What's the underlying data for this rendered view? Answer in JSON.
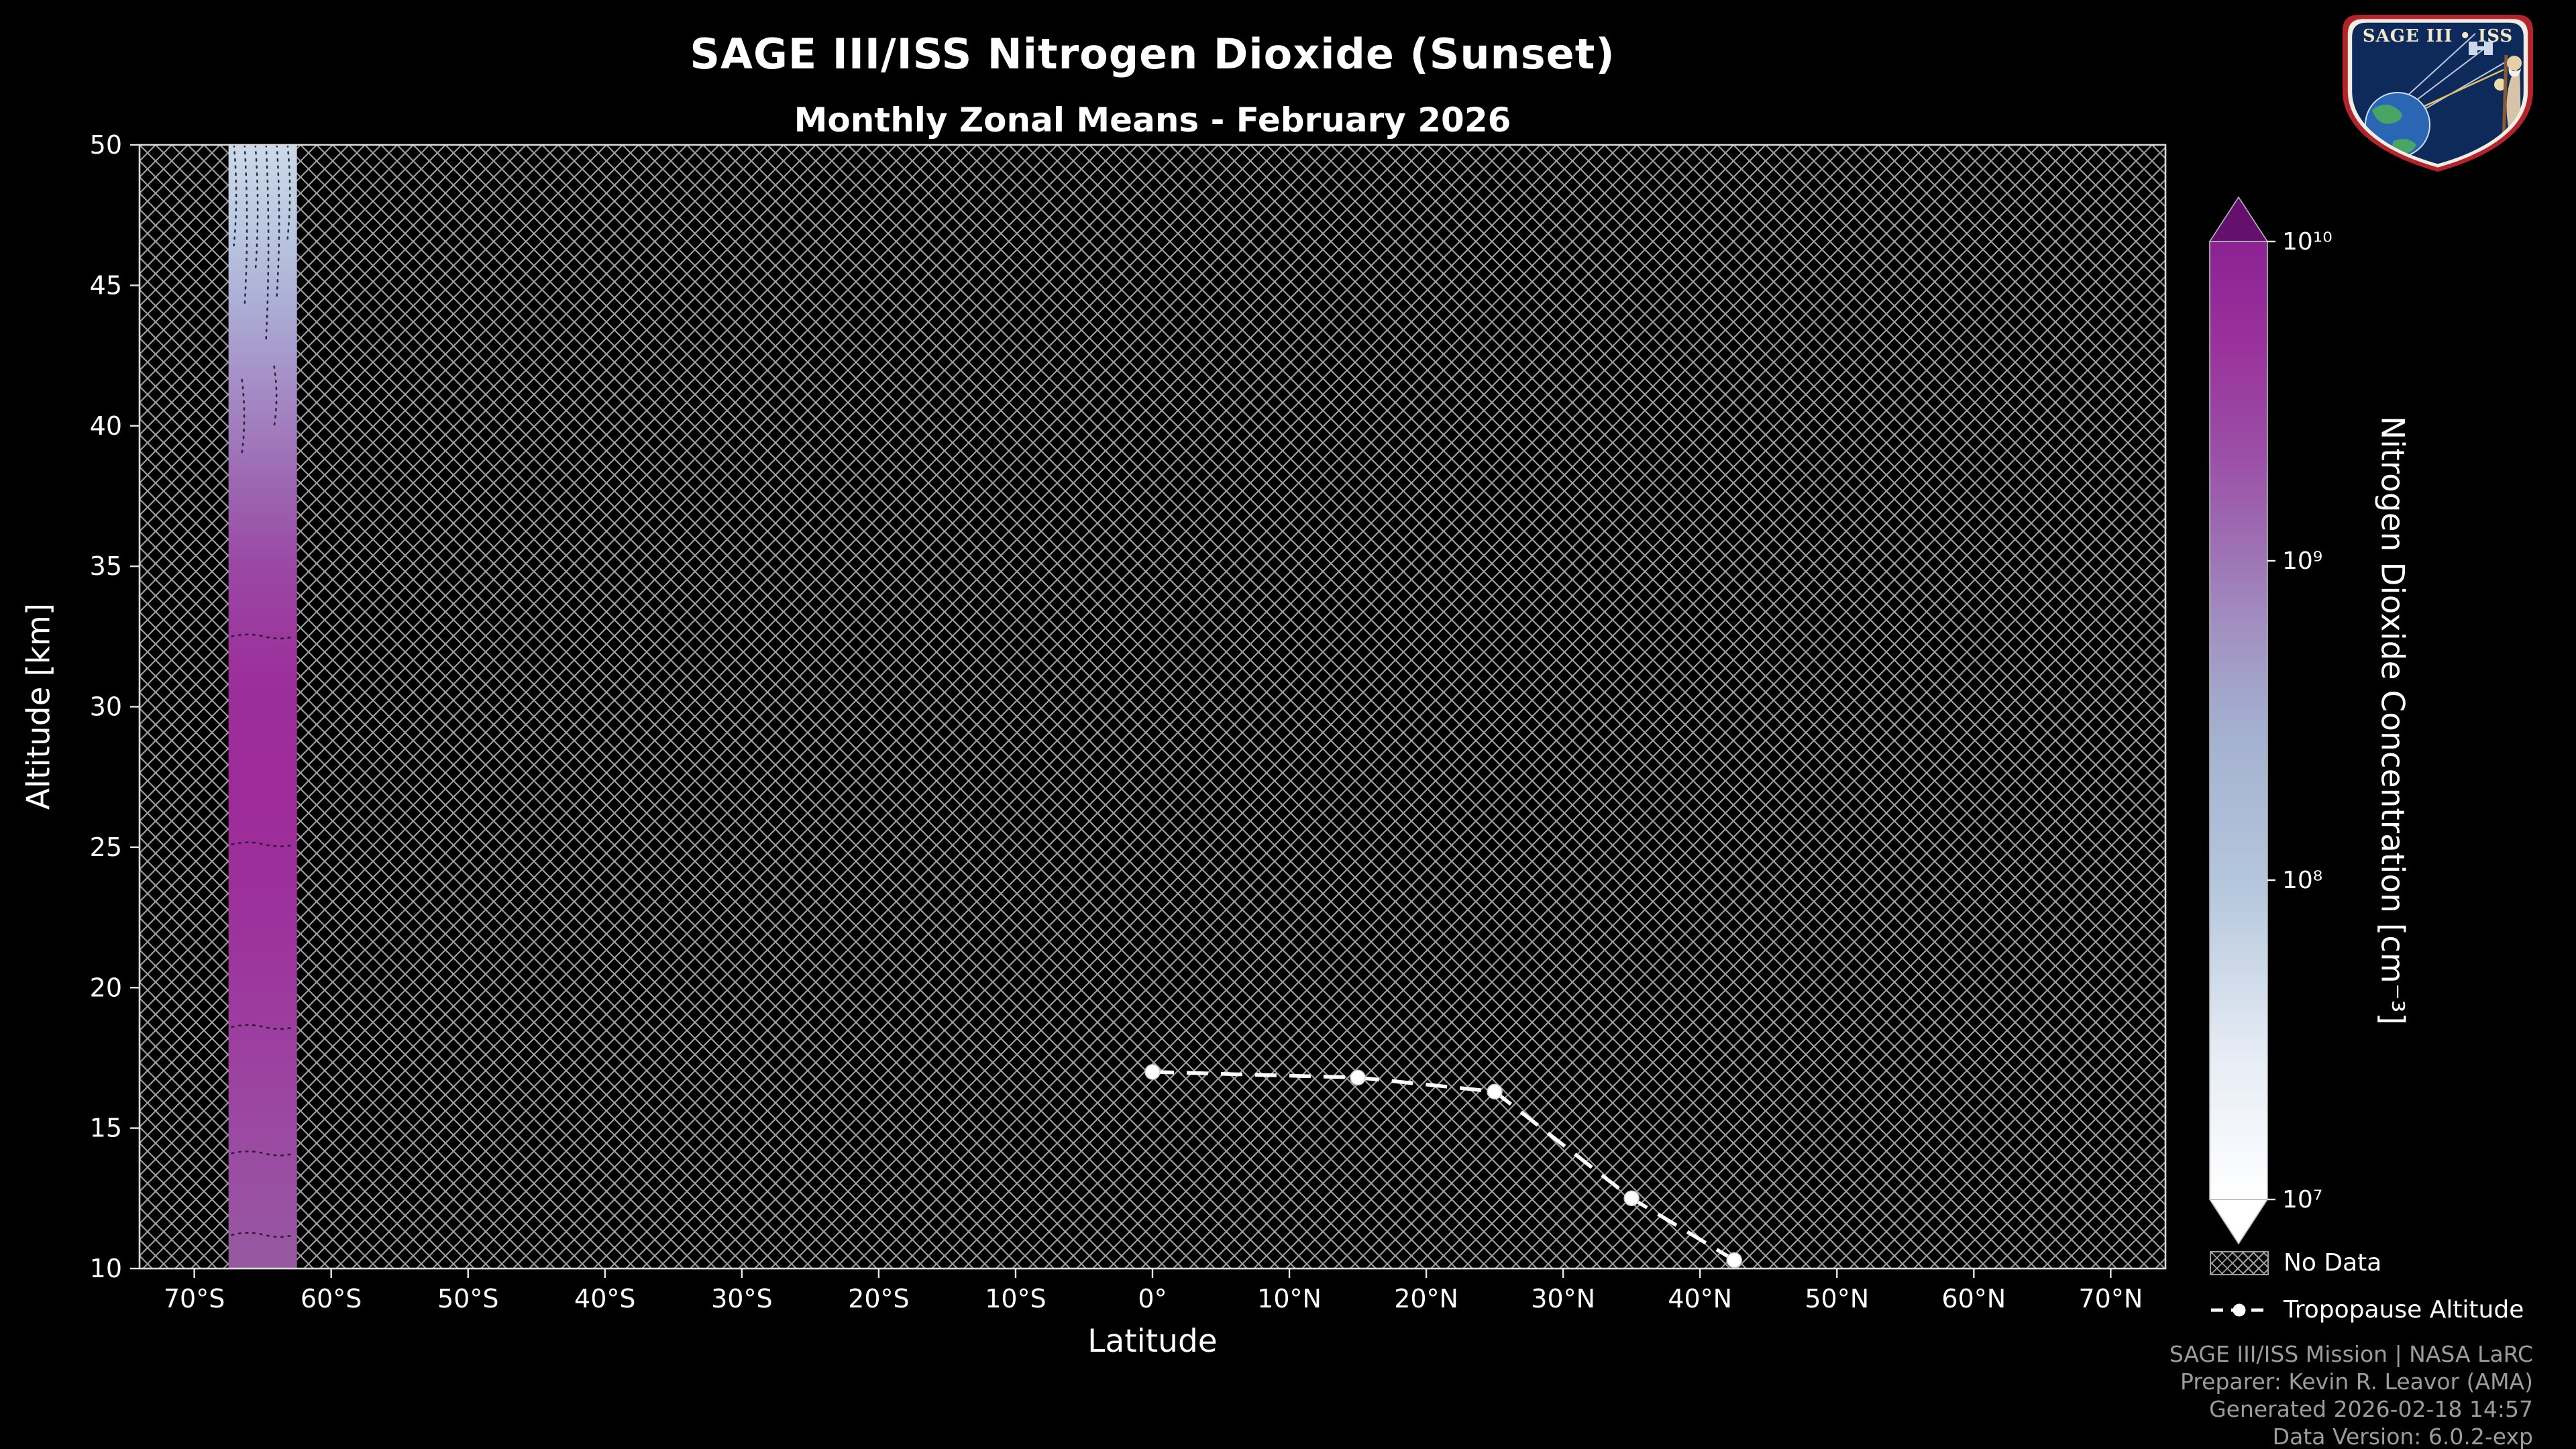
{
  "header": {
    "title": "SAGE III/ISS Nitrogen Dioxide (Sunset)",
    "subtitle": "Monthly Zonal Means - February 2026"
  },
  "logo": {
    "title": "SAGE III • ISS"
  },
  "axes": {
    "xlabel": "Latitude",
    "ylabel": "Altitude [km]"
  },
  "colorbar": {
    "label": "Nitrogen Dioxide Concentration [cm⁻³]"
  },
  "legend": {
    "no_data": "No Data",
    "tropopause": "Tropopause Altitude"
  },
  "credits": {
    "line1": "SAGE III/ISS Mission | NASA LaRC",
    "line2": "Preparer: Kevin R. Leavor (AMA)",
    "line3": "Generated 2026-02-18 14:57",
    "line4": "Data Version: 6.0.2-exp"
  },
  "chart_data": {
    "type": "heatmap",
    "title": "SAGE III/ISS Nitrogen Dioxide (Sunset)",
    "subtitle": "Monthly Zonal Means - February 2026",
    "xlabel": "Latitude",
    "ylabel": "Altitude [km]",
    "xlim": [
      -74,
      74
    ],
    "ylim": [
      10,
      50
    ],
    "grid": false,
    "x_ticks": [
      {
        "value": -70,
        "label": "70°S"
      },
      {
        "value": -60,
        "label": "60°S"
      },
      {
        "value": -50,
        "label": "50°S"
      },
      {
        "value": -40,
        "label": "40°S"
      },
      {
        "value": -30,
        "label": "30°S"
      },
      {
        "value": -20,
        "label": "20°S"
      },
      {
        "value": -10,
        "label": "10°S"
      },
      {
        "value": 0,
        "label": "0°"
      },
      {
        "value": 10,
        "label": "10°N"
      },
      {
        "value": 20,
        "label": "20°N"
      },
      {
        "value": 30,
        "label": "30°N"
      },
      {
        "value": 40,
        "label": "40°N"
      },
      {
        "value": 50,
        "label": "50°N"
      },
      {
        "value": 60,
        "label": "60°N"
      },
      {
        "value": 70,
        "label": "70°N"
      }
    ],
    "y_ticks": [
      {
        "value": 10,
        "label": "10"
      },
      {
        "value": 15,
        "label": "15"
      },
      {
        "value": 20,
        "label": "20"
      },
      {
        "value": 25,
        "label": "25"
      },
      {
        "value": 30,
        "label": "30"
      },
      {
        "value": 35,
        "label": "35"
      },
      {
        "value": 40,
        "label": "40"
      },
      {
        "value": 45,
        "label": "45"
      },
      {
        "value": 50,
        "label": "50"
      }
    ],
    "no_data_fill": "crosshatch",
    "data_band": {
      "latitude_range": [
        -67.5,
        -62.5
      ],
      "profile_colors": [
        {
          "altitude_km": 10,
          "color": "#96599f"
        },
        {
          "altitude_km": 13,
          "color": "#9a4fa3"
        },
        {
          "altitude_km": 17,
          "color": "#9c42a0"
        },
        {
          "altitude_km": 22,
          "color": "#9c339c"
        },
        {
          "altitude_km": 27,
          "color": "#9d2b99"
        },
        {
          "altitude_km": 31,
          "color": "#9c2f9b"
        },
        {
          "altitude_km": 35,
          "color": "#9a48a4"
        },
        {
          "altitude_km": 38,
          "color": "#9d68b2"
        },
        {
          "altitude_km": 41,
          "color": "#a488c4"
        },
        {
          "altitude_km": 44,
          "color": "#abaad4"
        },
        {
          "altitude_km": 47,
          "color": "#bac8e1"
        },
        {
          "altitude_km": 50,
          "color": "#ccd9ea"
        }
      ]
    },
    "colorbar": {
      "label": "Nitrogen Dioxide Concentration [cm⁻³]",
      "scale": "log",
      "min": 10000000.0,
      "max": 10000000000.0,
      "ticks": [
        {
          "value": 10000000000.0,
          "label": "10¹⁰"
        },
        {
          "value": 1000000000.0,
          "label": "10⁹"
        },
        {
          "value": 100000000.0,
          "label": "10⁸"
        },
        {
          "value": 10000000.0,
          "label": "10⁷"
        }
      ],
      "gradient": [
        {
          "offset": 0.0,
          "color": "#ffffff"
        },
        {
          "offset": 0.15,
          "color": "#e6ecf5"
        },
        {
          "offset": 0.33,
          "color": "#b4c6dc"
        },
        {
          "offset": 0.5,
          "color": "#a3aecf"
        },
        {
          "offset": 0.6,
          "color": "#a18fc1"
        },
        {
          "offset": 0.67,
          "color": "#9e74b5"
        },
        {
          "offset": 0.78,
          "color": "#9b4ea6"
        },
        {
          "offset": 0.9,
          "color": "#99309b"
        },
        {
          "offset": 1.0,
          "color": "#8d2292"
        }
      ],
      "over_color": "#66106e",
      "under_color": "#ffffff"
    },
    "series": [
      {
        "name": "Tropopause Altitude",
        "type": "line",
        "style": "dashed",
        "marker": "circle",
        "color": "#ffffff",
        "points": [
          {
            "lat": 0,
            "alt_km": 17.0
          },
          {
            "lat": 15,
            "alt_km": 16.8
          },
          {
            "lat": 25,
            "alt_km": 16.3
          },
          {
            "lat": 35,
            "alt_km": 12.5
          },
          {
            "lat": 42.5,
            "alt_km": 10.3
          }
        ]
      }
    ]
  }
}
